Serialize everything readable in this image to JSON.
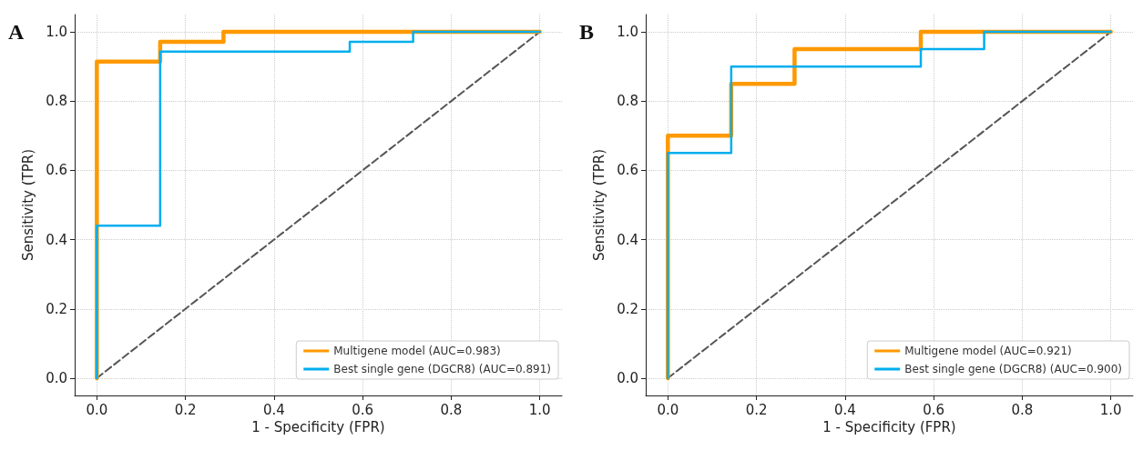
{
  "chart_data": [
    {
      "type": "line",
      "title": "A",
      "xlabel": "1 - Specificity (FPR)",
      "ylabel": "Sensitivity (TPR)",
      "xlim": [
        -0.05,
        1.05
      ],
      "ylim": [
        -0.05,
        1.05
      ],
      "xticks": [
        {
          "value": 0,
          "label": "0.0"
        },
        {
          "value": 0.2,
          "label": "0.2"
        },
        {
          "value": 0.4,
          "label": "0.4"
        },
        {
          "value": 0.6,
          "label": "0.6"
        },
        {
          "value": 0.8,
          "label": "0.8"
        },
        {
          "value": 1,
          "label": "1.0"
        }
      ],
      "yticks": [
        {
          "value": 0,
          "label": "0.0"
        },
        {
          "value": 0.2,
          "label": "0.2"
        },
        {
          "value": 0.4,
          "label": "0.4"
        },
        {
          "value": 0.6,
          "label": "0.6"
        },
        {
          "value": 0.8,
          "label": "0.8"
        },
        {
          "value": 1,
          "label": "1.0"
        }
      ],
      "grid": true,
      "legend": "bottom right",
      "marker": "none",
      "series": [
        {
          "name": "Multigene model (AUC=0.983)",
          "color": "#ff9900",
          "x": [
            0,
            0,
            0.143,
            0.143,
            0.286,
            0.286,
            1
          ],
          "values": [
            0,
            0.914,
            0.914,
            0.971,
            0.971,
            1,
            1
          ]
        },
        {
          "name": "Best single gene (DGCR8) (AUC=0.891)",
          "color": "#00aeef",
          "x": [
            0,
            0,
            0.143,
            0.143,
            0.571,
            0.571,
            0.714,
            0.714,
            1
          ],
          "values": [
            0,
            0.44,
            0.44,
            0.943,
            0.943,
            0.971,
            0.971,
            1,
            1
          ]
        },
        {
          "color": "#555555",
          "line_style": "dashed",
          "x": [
            0,
            1
          ],
          "values": [
            0,
            1
          ]
        }
      ]
    },
    {
      "type": "line",
      "title": "B",
      "xlabel": "1 - Specificity (FPR)",
      "ylabel": "Sensitivity (TPR)",
      "xlim": [
        -0.05,
        1.05
      ],
      "ylim": [
        -0.05,
        1.05
      ],
      "xticks": [
        {
          "value": 0,
          "label": "0.0"
        },
        {
          "value": 0.2,
          "label": "0.2"
        },
        {
          "value": 0.4,
          "label": "0.4"
        },
        {
          "value": 0.6,
          "label": "0.6"
        },
        {
          "value": 0.8,
          "label": "0.8"
        },
        {
          "value": 1,
          "label": "1.0"
        }
      ],
      "yticks": [
        {
          "value": 0,
          "label": "0.0"
        },
        {
          "value": 0.2,
          "label": "0.2"
        },
        {
          "value": 0.4,
          "label": "0.4"
        },
        {
          "value": 0.6,
          "label": "0.6"
        },
        {
          "value": 0.8,
          "label": "0.8"
        },
        {
          "value": 1,
          "label": "1.0"
        }
      ],
      "grid": true,
      "legend": "bottom right",
      "marker": "none",
      "series": [
        {
          "name": "Multigene model (AUC=0.921)",
          "color": "#ff9900",
          "x": [
            0,
            0,
            0.143,
            0.143,
            0.286,
            0.286,
            0.571,
            0.571,
            1
          ],
          "values": [
            0,
            0.7,
            0.7,
            0.85,
            0.85,
            0.95,
            0.95,
            1,
            1
          ]
        },
        {
          "name": "Best single gene (DGCR8) (AUC=0.900)",
          "color": "#00aeef",
          "x": [
            0,
            0,
            0.143,
            0.143,
            0.571,
            0.571,
            0.714,
            0.714,
            1
          ],
          "values": [
            0,
            0.65,
            0.65,
            0.9,
            0.9,
            0.95,
            0.95,
            1,
            1
          ]
        },
        {
          "color": "#555555",
          "line_style": "dashed",
          "x": [
            0,
            1
          ],
          "values": [
            0,
            1
          ]
        }
      ]
    }
  ]
}
